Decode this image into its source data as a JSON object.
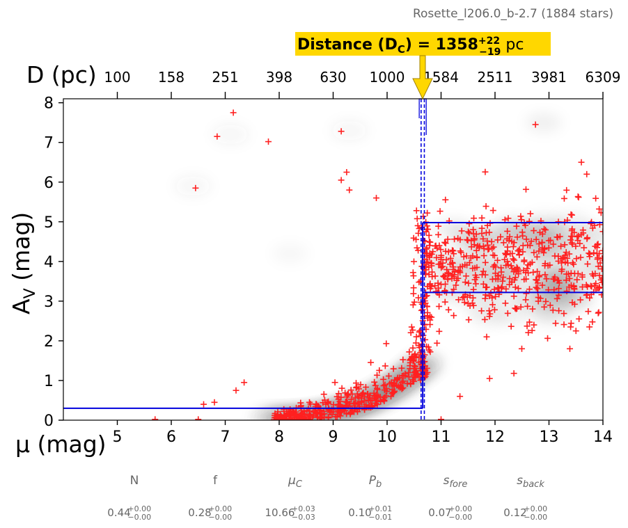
{
  "chart_data": {
    "type": "scatter",
    "title": "Rosette_l206.0_b-2.7 (1884 stars)",
    "annotation": {
      "label": "Distance (D",
      "sub": "C",
      "eq": ") = 1358",
      "sup": "+22",
      "subscript": "−19",
      "unit": " pc",
      "color": "#ffd700"
    },
    "xlabel_bottom": "μ (mag)",
    "xlabel_top": "D (pc)",
    "ylabel": "A",
    "ylabel_sub": "V",
    "ylabel_suffix": " (mag)",
    "xlim": [
      4,
      14
    ],
    "ylim": [
      0,
      8.1
    ],
    "x_ticks": [
      5,
      6,
      7,
      8,
      9,
      10,
      11,
      12,
      13,
      14
    ],
    "x_tick_labels": [
      "5",
      "6",
      "7",
      "8",
      "9",
      "10",
      "11",
      "12",
      "13",
      "14"
    ],
    "y_ticks": [
      0,
      1,
      2,
      3,
      4,
      5,
      6,
      7,
      8
    ],
    "y_tick_labels": [
      "0",
      "1",
      "2",
      "3",
      "4",
      "5",
      "6",
      "7",
      "8"
    ],
    "top_ticks_mu": [
      5,
      6,
      7,
      8,
      9,
      10,
      11,
      12,
      13,
      14
    ],
    "top_tick_labels": [
      "100",
      "158",
      "251",
      "398",
      "630",
      "1000",
      "1584",
      "2511",
      "3981",
      "6309"
    ],
    "marker_color": "#ff2020",
    "model_color": "#0000dd",
    "model": {
      "mu_c": 10.66,
      "mu_c_err": 0.03,
      "av_fore": 0.3,
      "av_back": 3.22,
      "av_back_upper": 4.98
    },
    "stars_visible": [
      [
        7.15,
        7.75
      ],
      [
        6.85,
        7.15
      ],
      [
        7.8,
        7.02
      ],
      [
        9.15,
        7.28
      ],
      [
        6.45,
        5.85
      ],
      [
        9.25,
        6.25
      ],
      [
        9.15,
        6.05
      ],
      [
        9.3,
        5.8
      ],
      [
        9.8,
        5.6
      ],
      [
        12.75,
        7.45
      ],
      [
        13.7,
        6.2
      ],
      [
        13.6,
        6.5
      ],
      [
        11.0,
        0.02
      ],
      [
        11.35,
        0.6
      ],
      [
        12.35,
        1.18
      ],
      [
        11.9,
        1.05
      ],
      [
        13.5,
        2.25
      ],
      [
        13.75,
        2.35
      ],
      [
        6.6,
        0.4
      ],
      [
        6.8,
        0.45
      ],
      [
        7.35,
        0.95
      ],
      [
        7.2,
        0.75
      ],
      [
        5.7,
        0.02
      ],
      [
        6.5,
        0.02
      ]
    ],
    "fit_parameters": [
      {
        "name": "N",
        "value": "0.44",
        "plus": "+0.00",
        "minus": "−0.00"
      },
      {
        "name": "f",
        "value": "0.28",
        "plus": "+0.00",
        "minus": "−0.00"
      },
      {
        "name": "μ",
        "sub": "C",
        "value": "10.66",
        "plus": "+0.03",
        "minus": "−0.03"
      },
      {
        "name": "P",
        "sub": "b",
        "value": "0.10",
        "plus": "+0.01",
        "minus": "−0.01"
      },
      {
        "name": "s",
        "sub": "fore",
        "value": "0.07",
        "plus": "+0.00",
        "minus": "−0.00"
      },
      {
        "name": "s",
        "sub": "back",
        "value": "0.12",
        "plus": "+0.00",
        "minus": "−0.00"
      }
    ]
  }
}
